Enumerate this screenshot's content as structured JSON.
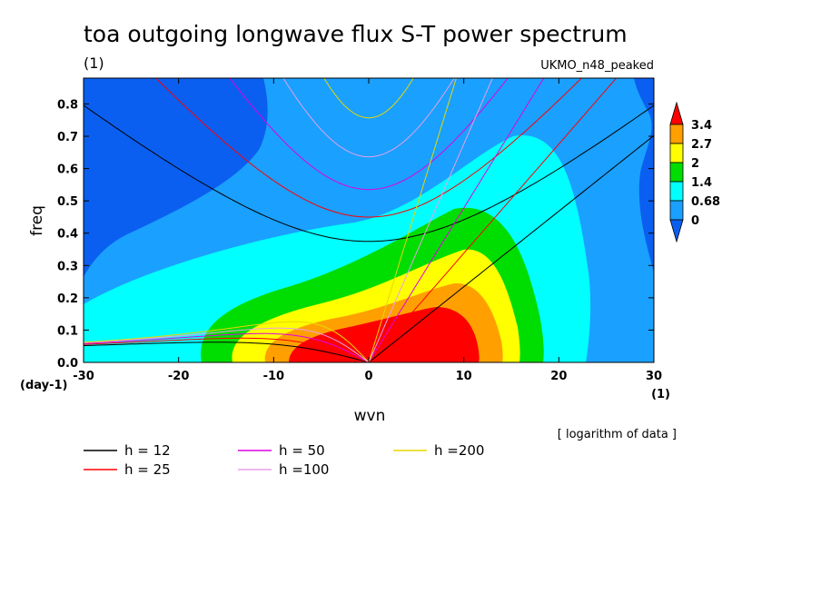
{
  "chart_data": {
    "type": "heatmap",
    "title": "toa outgoing longwave flux S-T power spectrum",
    "units_label": "(1)",
    "model_label": "UKMO_n48_peaked",
    "xlabel": "wvn",
    "ylabel": "freq",
    "x_units": "(1)",
    "y_units": "(day-1)",
    "xlim": [
      -30,
      30
    ],
    "ylim": [
      0,
      0.88
    ],
    "x_ticks": [
      -30,
      -20,
      -10,
      0,
      10,
      20,
      30
    ],
    "x_tick_labels": [
      "-30",
      "-20",
      "-10",
      "0",
      "10",
      "20",
      "30"
    ],
    "y_ticks": [
      0,
      0.1,
      0.2,
      0.3,
      0.4,
      0.5,
      0.6,
      0.7,
      0.8
    ],
    "y_tick_labels": [
      "0.0",
      "0.1",
      "0.2",
      "0.3",
      "0.4",
      "0.5",
      "0.6",
      "0.7",
      "0.8"
    ],
    "note": "[ logarithm of data ]",
    "colorbar": {
      "labels": [
        "0",
        "0.68",
        "1.4",
        "2",
        "2.7",
        "3.4"
      ],
      "levels": [
        0,
        0.68,
        1.4,
        2,
        2.7,
        3.4
      ],
      "colors": [
        "#0a5ff0",
        "#1aa0ff",
        "#00ffff",
        "#00dd00",
        "#ffff00",
        "#ffa000",
        "#ff0000"
      ]
    },
    "dispersion_curves": [
      {
        "label": "h = 12",
        "h": 12,
        "color": "#000000"
      },
      {
        "label": "h = 25",
        "h": 25,
        "color": "#ff0000"
      },
      {
        "label": "h = 50",
        "h": 50,
        "color": "#e000e0"
      },
      {
        "label": "h =100",
        "h": 100,
        "color": "#e8a0e8"
      },
      {
        "label": "h =200",
        "h": 200,
        "color": "#e8d800"
      }
    ]
  }
}
